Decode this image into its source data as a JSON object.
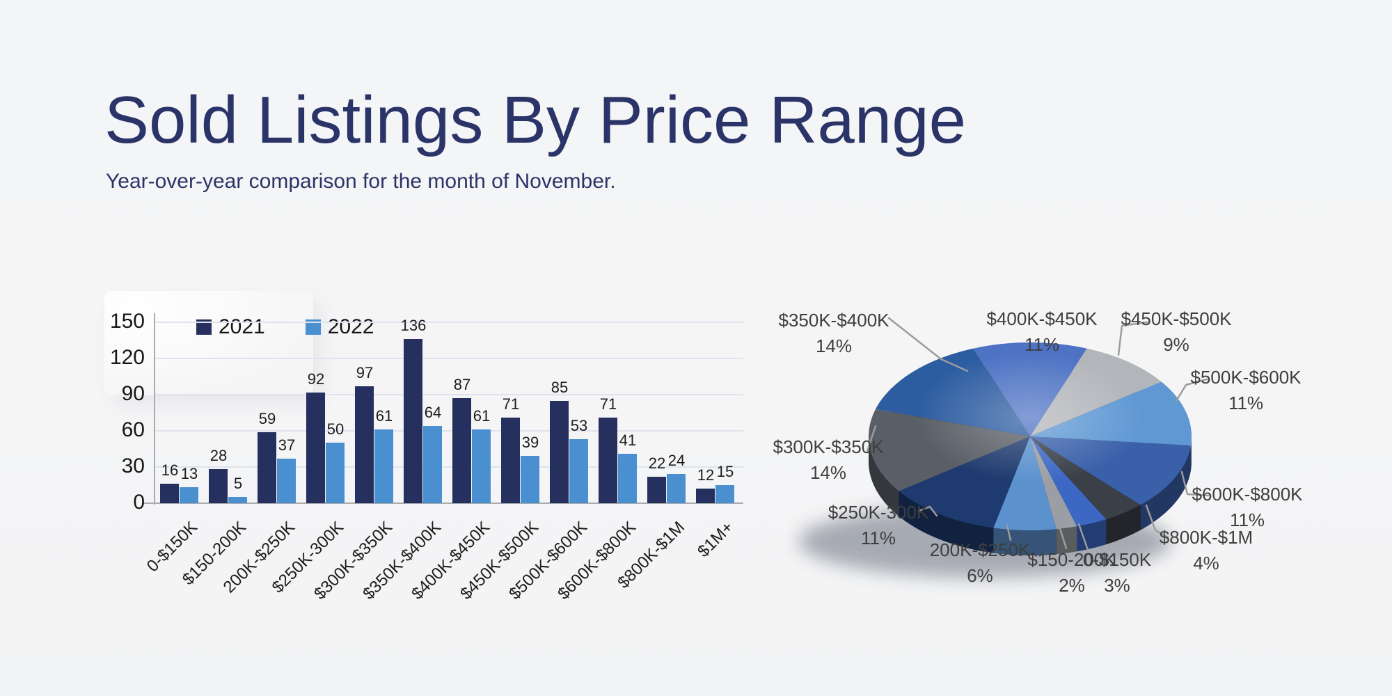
{
  "header": {
    "title": "Sold Listings By Price Range",
    "subtitle": "Year-over-year comparison for the month of November."
  },
  "colors": {
    "background": "#f4f5f6",
    "heading_text": "#2b3468",
    "bar_2021": "#26305f",
    "bar_2022": "#4a90d0",
    "gridline": "#dee3ef",
    "axis": "#a9abae",
    "value_text": "#1c1c1c",
    "pie_label_text": "#3e3e3e",
    "leader_line": "#9c9c9c"
  },
  "chart_data": [
    {
      "type": "bar",
      "title": "",
      "categories": [
        "0-$150K",
        "$150-200K",
        "200K-$250K",
        "$250K-300K",
        "$300K-$350K",
        "$350K-$400K",
        "$400K-$450K",
        "$450K-$500K",
        "$500K-$600K",
        "$600K-$800K",
        "$800K-$1M",
        "$1M+"
      ],
      "series": [
        {
          "name": "2021",
          "color": "#26305f",
          "values": [
            16,
            28,
            59,
            92,
            97,
            136,
            87,
            71,
            85,
            71,
            22,
            12
          ]
        },
        {
          "name": "2022",
          "color": "#4a90d0",
          "values": [
            13,
            5,
            37,
            50,
            61,
            64,
            61,
            39,
            53,
            41,
            24,
            15
          ]
        }
      ],
      "xlabel": "",
      "ylabel": "",
      "ylim": [
        0,
        150
      ],
      "yticks": [
        0,
        30,
        60,
        90,
        120,
        150
      ],
      "grid": true,
      "legend_position": "top-left",
      "bar_value_labels": true
    },
    {
      "type": "pie",
      "style": "3d",
      "slices": [
        {
          "label": "$400K-$450K",
          "value": 11,
          "pct": "11%",
          "color": "#4e73c4"
        },
        {
          "label": "$450K-$500K",
          "value": 9,
          "pct": "9%",
          "color": "#b2b5ba"
        },
        {
          "label": "$500K-$600K",
          "value": 11,
          "pct": "11%",
          "color": "#5f98d3"
        },
        {
          "label": "$600K-$800K",
          "value": 11,
          "pct": "11%",
          "color": "#3a60aa"
        },
        {
          "label": "$800K-$1M",
          "value": 4,
          "pct": "4%",
          "color": "#3a3f48"
        },
        {
          "label": "0-$150K",
          "value": 3,
          "pct": "3%",
          "color": "#3c68c4"
        },
        {
          "label": "$150-200K",
          "value": 2,
          "pct": "2%",
          "color": "#9b9fa5"
        },
        {
          "label": "200K-$250K",
          "value": 6,
          "pct": "6%",
          "color": "#5b91cd"
        },
        {
          "label": "$250K-300K",
          "value": 11,
          "pct": "11%",
          "color": "#1e3a6e"
        },
        {
          "label": "$300K-$350K",
          "value": 14,
          "pct": "14%",
          "color": "#5a5e66"
        },
        {
          "label": "$350K-$400K",
          "value": 14,
          "pct": "14%",
          "color": "#2d5da1"
        }
      ],
      "start_slice_centered_at": "top",
      "direction": "clockwise",
      "labels_outside_with_leader_lines": true
    }
  ]
}
